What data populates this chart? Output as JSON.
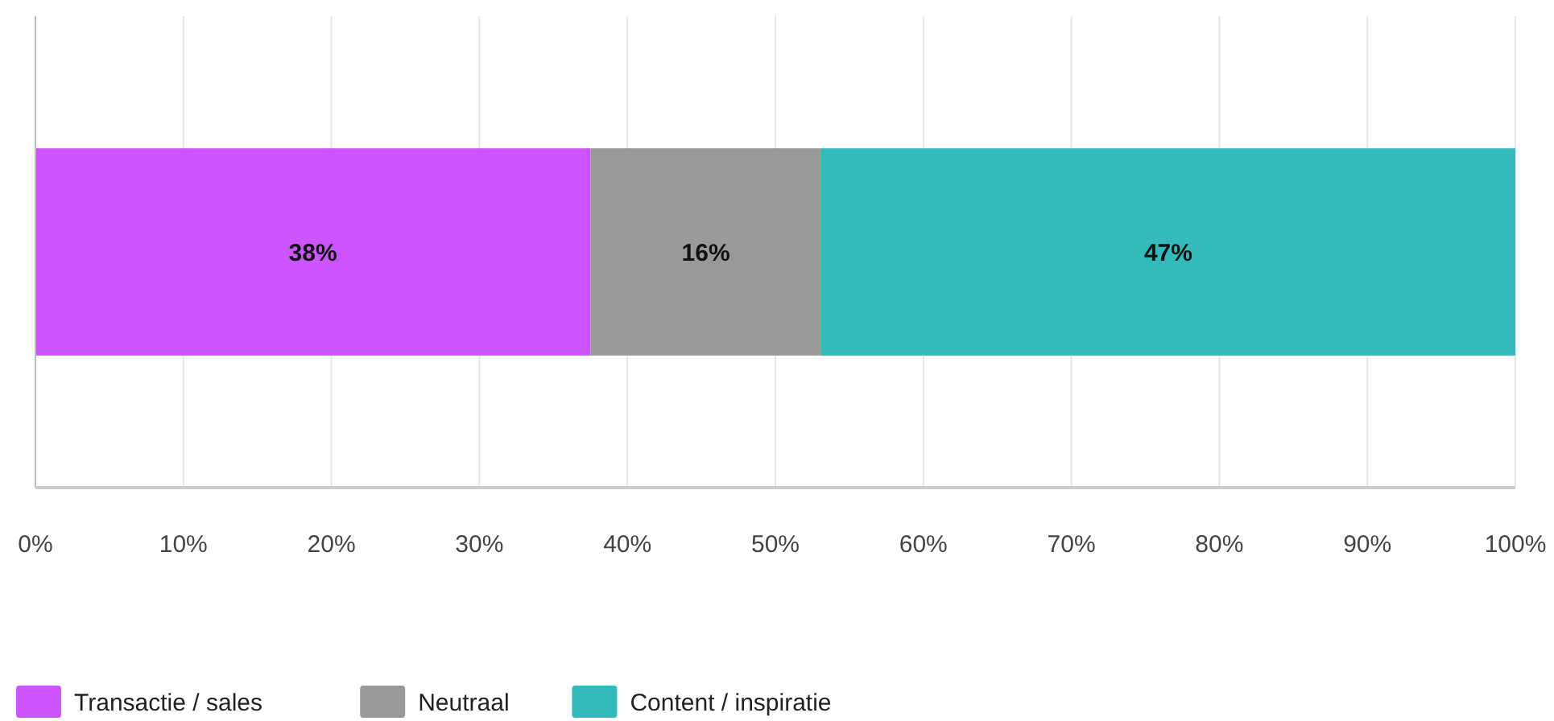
{
  "chart_data": {
    "type": "bar",
    "orientation": "horizontal",
    "stacked": true,
    "categories": [
      null
    ],
    "series": [
      {
        "name": "Transactie / sales",
        "color": "#cc55ff",
        "values": [
          37.5
        ],
        "value_labels": [
          "38%"
        ]
      },
      {
        "name": "Neutraal",
        "color": "#999999",
        "values": [
          15.6
        ],
        "value_labels": [
          "16%"
        ]
      },
      {
        "name": "Content / inspiratie",
        "color": "#33bbbb",
        "values": [
          46.9
        ],
        "value_labels": [
          "47%"
        ]
      }
    ],
    "xlim": [
      0,
      100
    ],
    "xticks": [
      {
        "value": 0,
        "label": "0%"
      },
      {
        "value": 10,
        "label": "10%"
      },
      {
        "value": 20,
        "label": "20%"
      },
      {
        "value": 30,
        "label": "30%"
      },
      {
        "value": 40,
        "label": "40%"
      },
      {
        "value": 50,
        "label": "50%"
      },
      {
        "value": 60,
        "label": "60%"
      },
      {
        "value": 70,
        "label": "70%"
      },
      {
        "value": 80,
        "label": "80%"
      },
      {
        "value": 90,
        "label": "90%"
      },
      {
        "value": 100,
        "label": "100%"
      }
    ],
    "grid": "x",
    "legend": "bottom left"
  }
}
